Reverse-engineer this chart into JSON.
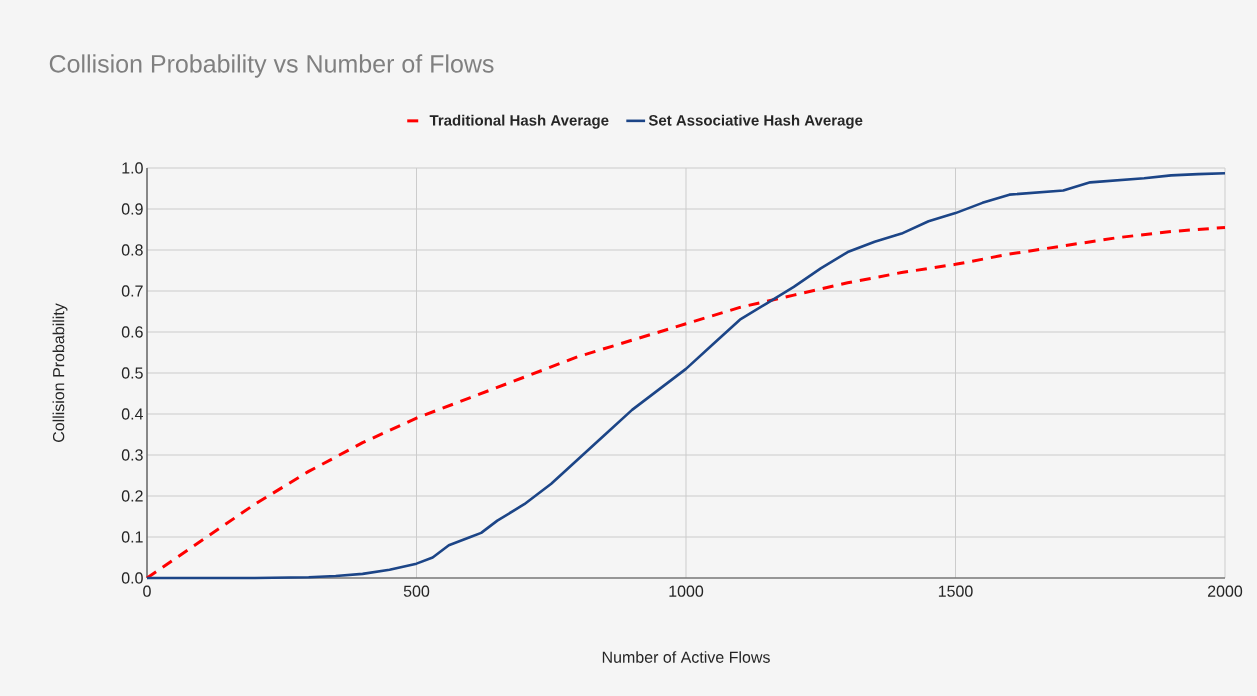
{
  "chart_data": {
    "type": "line",
    "title": "Collision Probability vs Number of Flows",
    "xlabel": "Number of Active Flows",
    "ylabel": "Collision Probability",
    "xlim": [
      0,
      2000
    ],
    "xticks": [
      0,
      500,
      1000,
      1500,
      2000
    ],
    "ylim": [
      0,
      1
    ],
    "yticks": [
      {
        "value": 0,
        "label": "0.0"
      },
      0.1,
      0.2,
      0.3,
      0.4,
      0.5,
      0.6,
      0.7,
      0.8,
      0.9,
      {
        "value": 1,
        "label": "1.0"
      }
    ],
    "grid": true,
    "legend": "top",
    "marker": "none",
    "series": [
      {
        "name": "Traditional Hash Average",
        "color": "#ff0000",
        "line_style": "dashed",
        "x": [
          0,
          100,
          200,
          300,
          400,
          500,
          600,
          700,
          800,
          900,
          1000,
          1100,
          1200,
          1300,
          1400,
          1500,
          1600,
          1700,
          1800,
          1900,
          2000
        ],
        "values": [
          0,
          0.09,
          0.18,
          0.26,
          0.33,
          0.39,
          0.44,
          0.49,
          0.54,
          0.58,
          0.62,
          0.66,
          0.69,
          0.72,
          0.745,
          0.765,
          0.79,
          0.81,
          0.83,
          0.845,
          0.855
        ]
      },
      {
        "name": "Set Associative Hash Average",
        "color": "#1c4587",
        "line_style": "solid",
        "x": [
          0,
          100,
          200,
          300,
          350,
          400,
          450,
          500,
          530,
          560,
          600,
          620,
          650,
          700,
          750,
          800,
          850,
          900,
          950,
          1000,
          1050,
          1100,
          1150,
          1200,
          1250,
          1300,
          1350,
          1400,
          1450,
          1500,
          1550,
          1600,
          1650,
          1700,
          1750,
          1800,
          1850,
          1900,
          1950,
          2000
        ],
        "values": [
          0,
          0,
          0,
          0.002,
          0.005,
          0.01,
          0.02,
          0.035,
          0.05,
          0.08,
          0.1,
          0.11,
          0.14,
          0.18,
          0.23,
          0.29,
          0.35,
          0.41,
          0.46,
          0.51,
          0.57,
          0.63,
          0.67,
          0.71,
          0.755,
          0.795,
          0.82,
          0.84,
          0.87,
          0.89,
          0.915,
          0.935,
          0.94,
          0.945,
          0.965,
          0.97,
          0.975,
          0.982,
          0.985,
          0.987
        ]
      }
    ]
  }
}
